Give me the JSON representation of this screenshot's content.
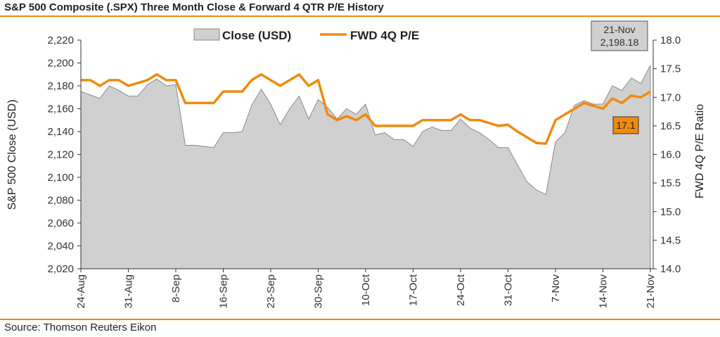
{
  "title": "S&P 500 Composite (.SPX) Three Month Close & Forward 4 QTR P/E History",
  "source": "Source: Thomson Reuters Eikon",
  "chart_data": {
    "type": "area",
    "xlabel": "",
    "ylabel": "S&P 500 Close (USD)",
    "y2label": "FWD 4Q P/E Ratio",
    "ylim": [
      2020,
      2220
    ],
    "y2lim": [
      14.0,
      18.0
    ],
    "yticks": [
      "2,020",
      "2,040",
      "2,060",
      "2,080",
      "2,100",
      "2,120",
      "2,140",
      "2,160",
      "2,180",
      "2,200",
      "2,220"
    ],
    "y2ticks": [
      "14.0",
      "14.5",
      "15.0",
      "15.5",
      "16.0",
      "16.5",
      "17.0",
      "17.5",
      "18.0"
    ],
    "xticks": [
      {
        "label": "24-Aug",
        "index": 0
      },
      {
        "label": "31-Aug",
        "index": 5
      },
      {
        "label": "8-Sep",
        "index": 10
      },
      {
        "label": "16-Sep",
        "index": 15
      },
      {
        "label": "23-Sep",
        "index": 20
      },
      {
        "label": "30-Sep",
        "index": 25
      },
      {
        "label": "10-Oct",
        "index": 30
      },
      {
        "label": "17-Oct",
        "index": 35
      },
      {
        "label": "24-Oct",
        "index": 40
      },
      {
        "label": "31-Oct",
        "index": 45
      },
      {
        "label": "7-Nov",
        "index": 50
      },
      {
        "label": "14-Nov",
        "index": 55
      },
      {
        "label": "21-Nov",
        "index": 60
      }
    ],
    "legend": {
      "position": "top-center",
      "close_label": "Close (USD)",
      "pe_label": "FWD 4Q P/E"
    },
    "series": [
      {
        "name": "Close (USD)",
        "color": "#c8c8c8",
        "axis": "left",
        "values": [
          2175,
          2172,
          2169,
          2180,
          2176,
          2171,
          2171,
          2181,
          2186,
          2180,
          2181,
          2128,
          2128,
          2127,
          2126,
          2139,
          2139,
          2140,
          2163,
          2177,
          2164,
          2146,
          2160,
          2171,
          2151,
          2168,
          2161,
          2151,
          2160,
          2155,
          2164,
          2137,
          2139,
          2133,
          2133,
          2127,
          2140,
          2144,
          2141,
          2141,
          2151,
          2143,
          2139,
          2133,
          2126,
          2126,
          2111,
          2096,
          2089,
          2085,
          2131,
          2139,
          2163,
          2167,
          2164,
          2164,
          2180,
          2176,
          2187,
          2182,
          2198
        ]
      },
      {
        "name": "FWD 4Q P/E",
        "color": "#f08a0e",
        "axis": "right",
        "values": [
          17.3,
          17.3,
          17.2,
          17.3,
          17.3,
          17.2,
          17.25,
          17.3,
          17.4,
          17.3,
          17.3,
          16.9,
          16.9,
          16.9,
          16.9,
          17.1,
          17.1,
          17.1,
          17.3,
          17.4,
          17.3,
          17.2,
          17.3,
          17.4,
          17.2,
          17.3,
          16.7,
          16.6,
          16.67,
          16.6,
          16.7,
          16.5,
          16.5,
          16.5,
          16.5,
          16.5,
          16.6,
          16.6,
          16.6,
          16.6,
          16.7,
          16.6,
          16.6,
          16.55,
          16.5,
          16.52,
          16.4,
          16.3,
          16.2,
          16.19,
          16.6,
          16.7,
          16.8,
          16.9,
          16.85,
          16.8,
          16.98,
          16.9,
          17.03,
          17.0,
          17.1
        ]
      }
    ],
    "annotations": {
      "last_date": "21-Nov",
      "last_close": "2,198.18",
      "last_pe": "17.1"
    }
  }
}
